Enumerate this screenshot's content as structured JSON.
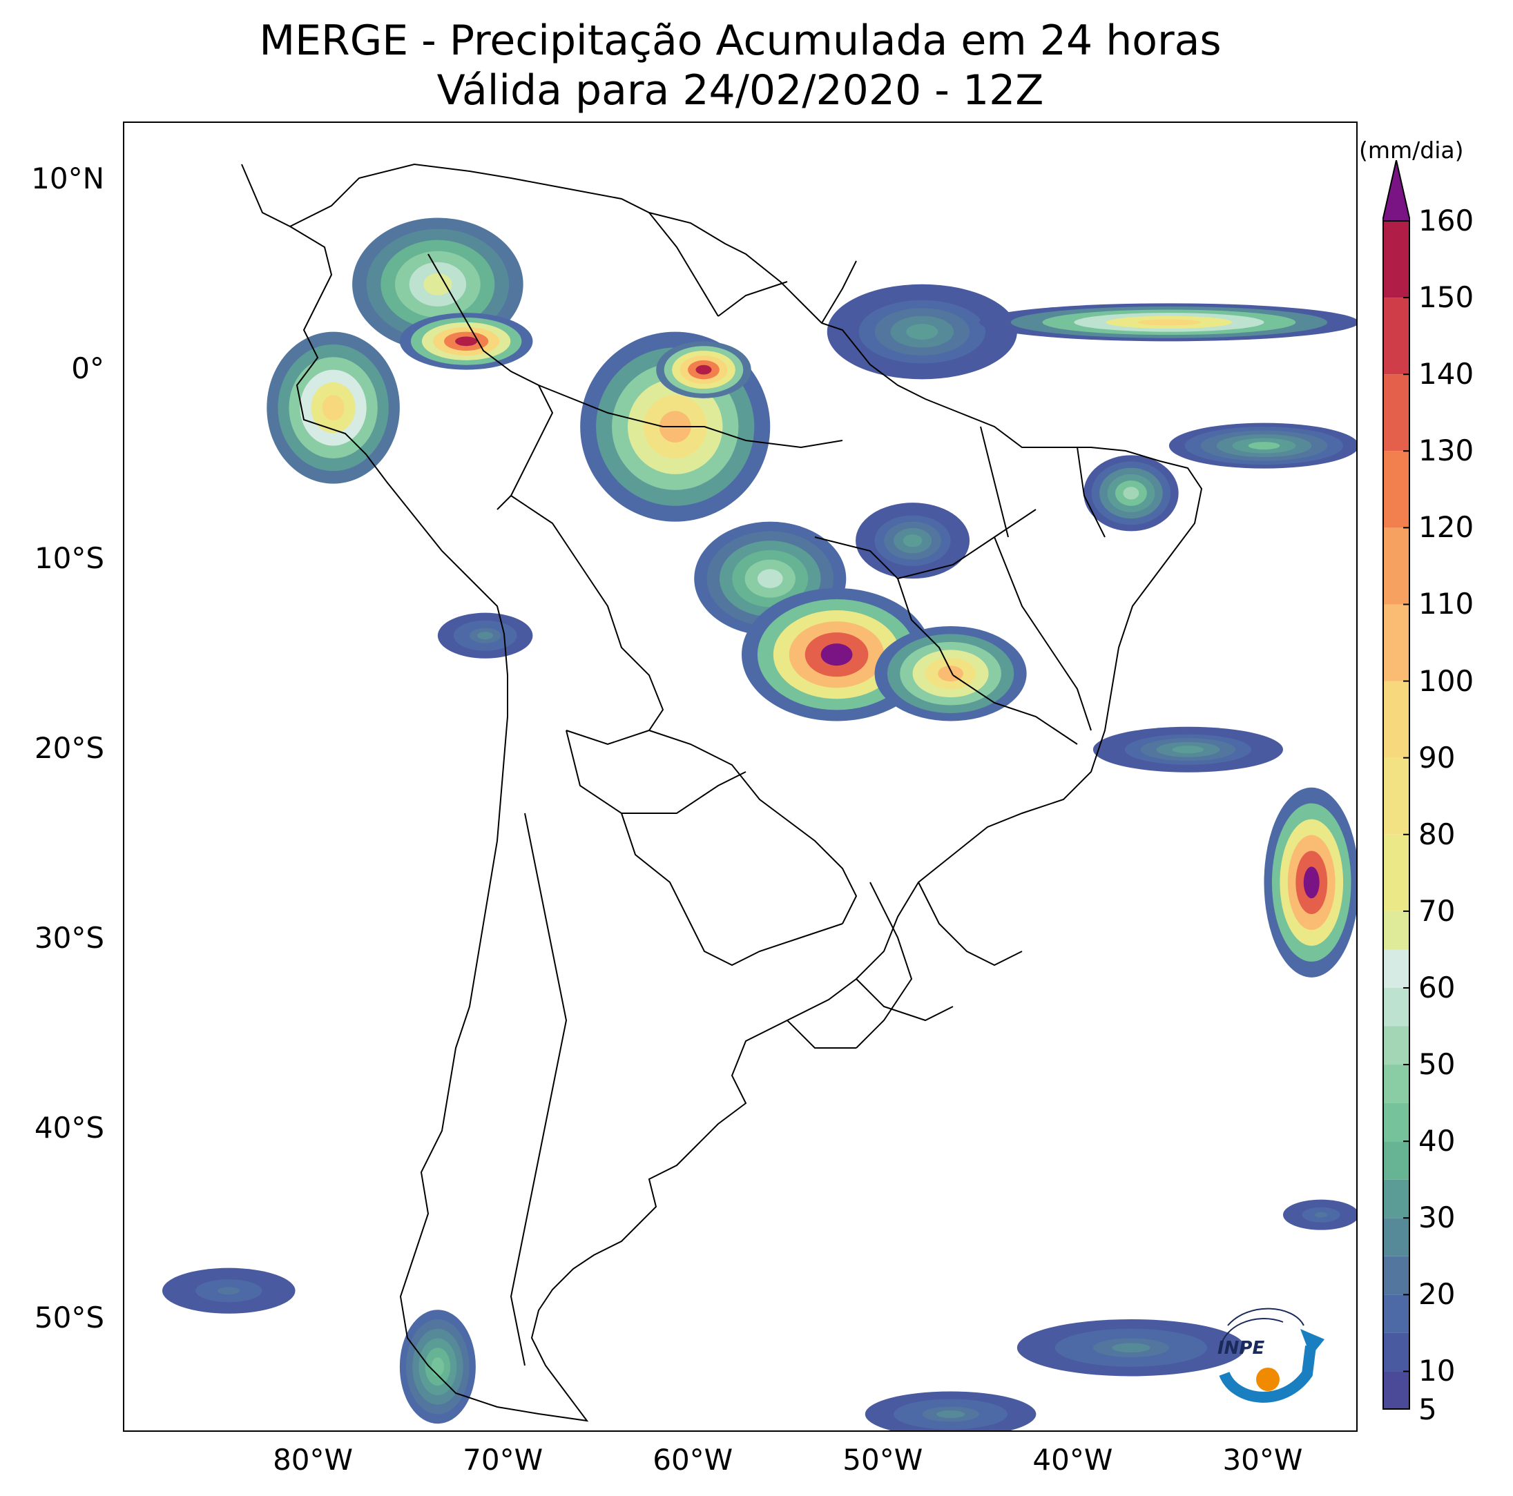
{
  "title": {
    "line1": "MERGE - Precipitação Acumulada em 24 horas",
    "line2": "Válida para 24/02/2020 - 12Z"
  },
  "axes": {
    "lon_range": [
      -90,
      -25
    ],
    "lat_range": [
      -56,
      13
    ],
    "y_ticks": [
      {
        "value": 10,
        "label": "10°N"
      },
      {
        "value": 0,
        "label": "0°"
      },
      {
        "value": -10,
        "label": "10°S"
      },
      {
        "value": -20,
        "label": "20°S"
      },
      {
        "value": -30,
        "label": "30°S"
      },
      {
        "value": -40,
        "label": "40°S"
      },
      {
        "value": -50,
        "label": "50°S"
      }
    ],
    "x_ticks": [
      {
        "value": -80,
        "label": "80°W"
      },
      {
        "value": -70,
        "label": "70°W"
      },
      {
        "value": -60,
        "label": "60°W"
      },
      {
        "value": -50,
        "label": "50°W"
      },
      {
        "value": -40,
        "label": "40°W"
      },
      {
        "value": -30,
        "label": "30°W"
      }
    ]
  },
  "colorbar": {
    "unit": "(mm/dia)",
    "min": 5,
    "max": 160,
    "extend": "max",
    "tick_labels": [
      {
        "value": 5,
        "label": "5"
      },
      {
        "value": 10,
        "label": "10"
      },
      {
        "value": 20,
        "label": "20"
      },
      {
        "value": 30,
        "label": "30"
      },
      {
        "value": 40,
        "label": "40"
      },
      {
        "value": 50,
        "label": "50"
      },
      {
        "value": 60,
        "label": "60"
      },
      {
        "value": 70,
        "label": "70"
      },
      {
        "value": 80,
        "label": "80"
      },
      {
        "value": 90,
        "label": "90"
      },
      {
        "value": 100,
        "label": "100"
      },
      {
        "value": 110,
        "label": "110"
      },
      {
        "value": 120,
        "label": "120"
      },
      {
        "value": 130,
        "label": "130"
      },
      {
        "value": 140,
        "label": "140"
      },
      {
        "value": 150,
        "label": "150"
      },
      {
        "value": 160,
        "label": "160"
      }
    ],
    "levels": [
      {
        "from": 5,
        "to": 10,
        "color": "#4a4a98"
      },
      {
        "from": 10,
        "to": 15,
        "color": "#4a5aa0"
      },
      {
        "from": 15,
        "to": 20,
        "color": "#4d6aa6"
      },
      {
        "from": 20,
        "to": 25,
        "color": "#52769e"
      },
      {
        "from": 25,
        "to": 30,
        "color": "#568a98"
      },
      {
        "from": 30,
        "to": 35,
        "color": "#5c9c96"
      },
      {
        "from": 35,
        "to": 40,
        "color": "#66b494"
      },
      {
        "from": 40,
        "to": 45,
        "color": "#76c29a"
      },
      {
        "from": 45,
        "to": 50,
        "color": "#8acca4"
      },
      {
        "from": 50,
        "to": 55,
        "color": "#a2d6b4"
      },
      {
        "from": 55,
        "to": 60,
        "color": "#bde2cf"
      },
      {
        "from": 60,
        "to": 65,
        "color": "#d5ebe4"
      },
      {
        "from": 65,
        "to": 70,
        "color": "#e0eb9a"
      },
      {
        "from": 70,
        "to": 80,
        "color": "#ebe888"
      },
      {
        "from": 80,
        "to": 90,
        "color": "#f3e284"
      },
      {
        "from": 90,
        "to": 100,
        "color": "#f8d87c"
      },
      {
        "from": 100,
        "to": 110,
        "color": "#f9bc72"
      },
      {
        "from": 110,
        "to": 120,
        "color": "#f7a160"
      },
      {
        "from": 120,
        "to": 130,
        "color": "#f1804e"
      },
      {
        "from": 130,
        "to": 140,
        "color": "#e4604a"
      },
      {
        "from": 140,
        "to": 150,
        "color": "#cf3e48"
      },
      {
        "from": 150,
        "to": 160,
        "color": "#b01e48"
      },
      {
        "from": 160,
        "to": 999,
        "color": "#7a1484"
      }
    ]
  },
  "rain_areas": [
    {
      "lon": -73.5,
      "lat": 4.5,
      "rx": 4.5,
      "ry": 3.5,
      "level": 20,
      "peak": 65
    },
    {
      "lon": -72.0,
      "lat": 1.5,
      "rx": 3.5,
      "ry": 1.5,
      "level": 15,
      "peak": 150
    },
    {
      "lon": -79.0,
      "lat": -2.0,
      "rx": 3.5,
      "ry": 4.0,
      "level": 20,
      "peak": 90
    },
    {
      "lon": -61.0,
      "lat": -3.0,
      "rx": 5.0,
      "ry": 5.0,
      "level": 15,
      "peak": 100
    },
    {
      "lon": -59.5,
      "lat": 0.0,
      "rx": 2.5,
      "ry": 1.5,
      "level": 20,
      "peak": 150
    },
    {
      "lon": -48.0,
      "lat": 2.0,
      "rx": 5.0,
      "ry": 2.5,
      "level": 10,
      "peak": 30
    },
    {
      "lon": -35.0,
      "lat": 2.5,
      "rx": 10.0,
      "ry": 1.0,
      "level": 10,
      "peak": 90
    },
    {
      "lon": -30.0,
      "lat": -4.0,
      "rx": 5.0,
      "ry": 1.2,
      "level": 10,
      "peak": 40
    },
    {
      "lon": -56.0,
      "lat": -11.0,
      "rx": 4.0,
      "ry": 3.0,
      "level": 15,
      "peak": 55
    },
    {
      "lon": -52.5,
      "lat": -15.0,
      "rx": 5.0,
      "ry": 3.5,
      "level": 15,
      "peak": 160
    },
    {
      "lon": -46.5,
      "lat": -16.0,
      "rx": 4.0,
      "ry": 2.5,
      "level": 15,
      "peak": 100
    },
    {
      "lon": -48.5,
      "lat": -9.0,
      "rx": 3.0,
      "ry": 2.0,
      "level": 10,
      "peak": 30
    },
    {
      "lon": -37.0,
      "lat": -6.5,
      "rx": 2.5,
      "ry": 2.0,
      "level": 10,
      "peak": 50
    },
    {
      "lon": -71.0,
      "lat": -14.0,
      "rx": 2.5,
      "ry": 1.2,
      "level": 10,
      "peak": 25
    },
    {
      "lon": -27.5,
      "lat": -27.0,
      "rx": 2.5,
      "ry": 5.0,
      "level": 15,
      "peak": 160
    },
    {
      "lon": -34.0,
      "lat": -20.0,
      "rx": 5.0,
      "ry": 1.2,
      "level": 10,
      "peak": 30
    },
    {
      "lon": -37.0,
      "lat": -51.5,
      "rx": 6.0,
      "ry": 1.5,
      "level": 10,
      "peak": 25
    },
    {
      "lon": -46.5,
      "lat": -55.0,
      "rx": 4.5,
      "ry": 1.2,
      "level": 10,
      "peak": 25
    },
    {
      "lon": -73.5,
      "lat": -52.5,
      "rx": 2.0,
      "ry": 3.0,
      "level": 15,
      "peak": 40
    },
    {
      "lon": -84.5,
      "lat": -48.5,
      "rx": 3.5,
      "ry": 1.2,
      "level": 10,
      "peak": 20
    },
    {
      "lon": -27.0,
      "lat": -44.5,
      "rx": 2.0,
      "ry": 0.8,
      "level": 10,
      "peak": 20
    }
  ]
}
